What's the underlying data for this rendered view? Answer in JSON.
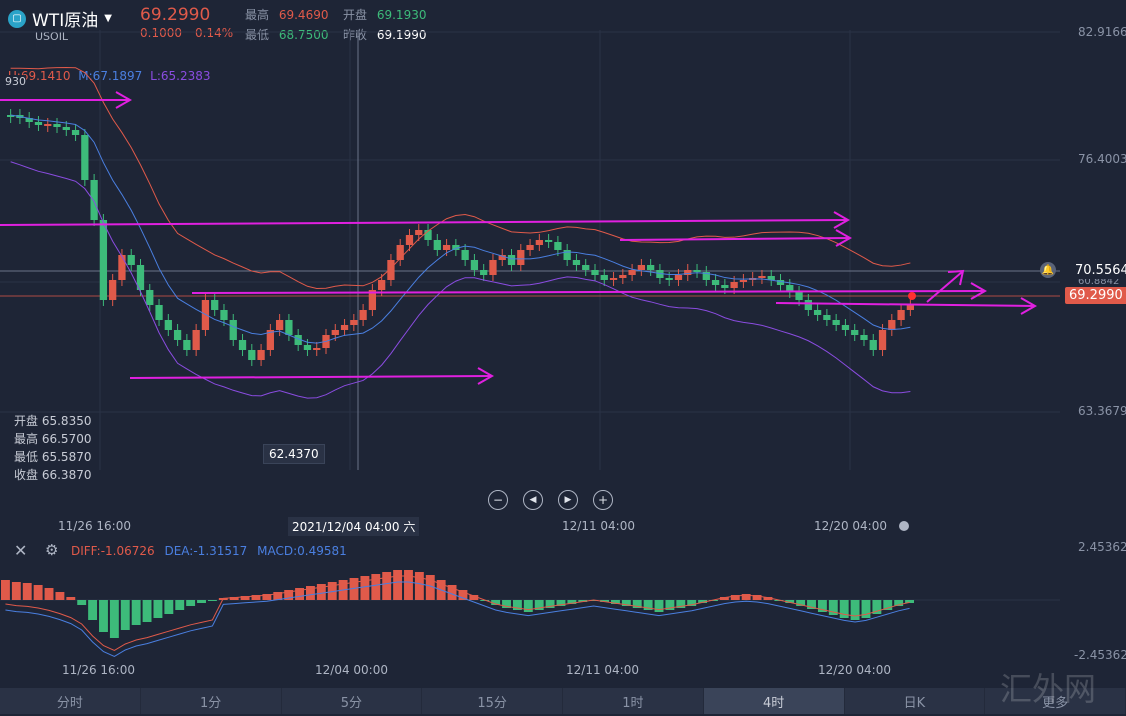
{
  "header": {
    "symbol": "WTI原油",
    "code": "USOIL",
    "price": "69.2990",
    "change": "0.1000",
    "change_pct": "0.14%",
    "high_label": "最高",
    "high": "69.4690",
    "open_label": "开盘",
    "open": "69.1930",
    "low_label": "最低",
    "low": "68.7500",
    "prev_label": "昨收",
    "prev": "69.1990"
  },
  "bollinger": {
    "upper": "U:69.1410",
    "mid": "M:67.1897",
    "lower": "L:65.2383",
    "stub": "930"
  },
  "y_axis": [
    "82.9166",
    "76.4003",
    "70.5564",
    "69.2990",
    "63.3679",
    "60.8842"
  ],
  "crosshair": {
    "ohlc": [
      {
        "label": "开盘",
        "value": "65.8350"
      },
      {
        "label": "最高",
        "value": "66.5700"
      },
      {
        "label": "最低",
        "value": "65.5870"
      },
      {
        "label": "收盘",
        "value": "66.3870"
      }
    ],
    "time": "2021/12/04 04:00 六",
    "min_label": "62.4370"
  },
  "x_axis": [
    "11/26 16:00",
    "12/11 04:00",
    "12/20 04:00"
  ],
  "macd": {
    "diff": "DIFF:-1.06726",
    "dea": "DEA:-1.31517",
    "macd": "MACD:0.49581",
    "y_top": "2.45362",
    "y_bottom": "-2.45362",
    "x_axis": [
      "11/26 16:00",
      "12/04 00:00",
      "12/11 04:00",
      "12/20 04:00"
    ]
  },
  "tabs": [
    "分时",
    "1分",
    "5分",
    "15分",
    "1时",
    "4时",
    "日K",
    "更多"
  ],
  "active_tab": "4时",
  "watermark": "汇外网",
  "colors": {
    "up": "#e05a4a",
    "down": "#3dbb7a",
    "mid": "#4a7fe0",
    "band": "#8a4ce0",
    "annot": "#e020e0"
  }
}
